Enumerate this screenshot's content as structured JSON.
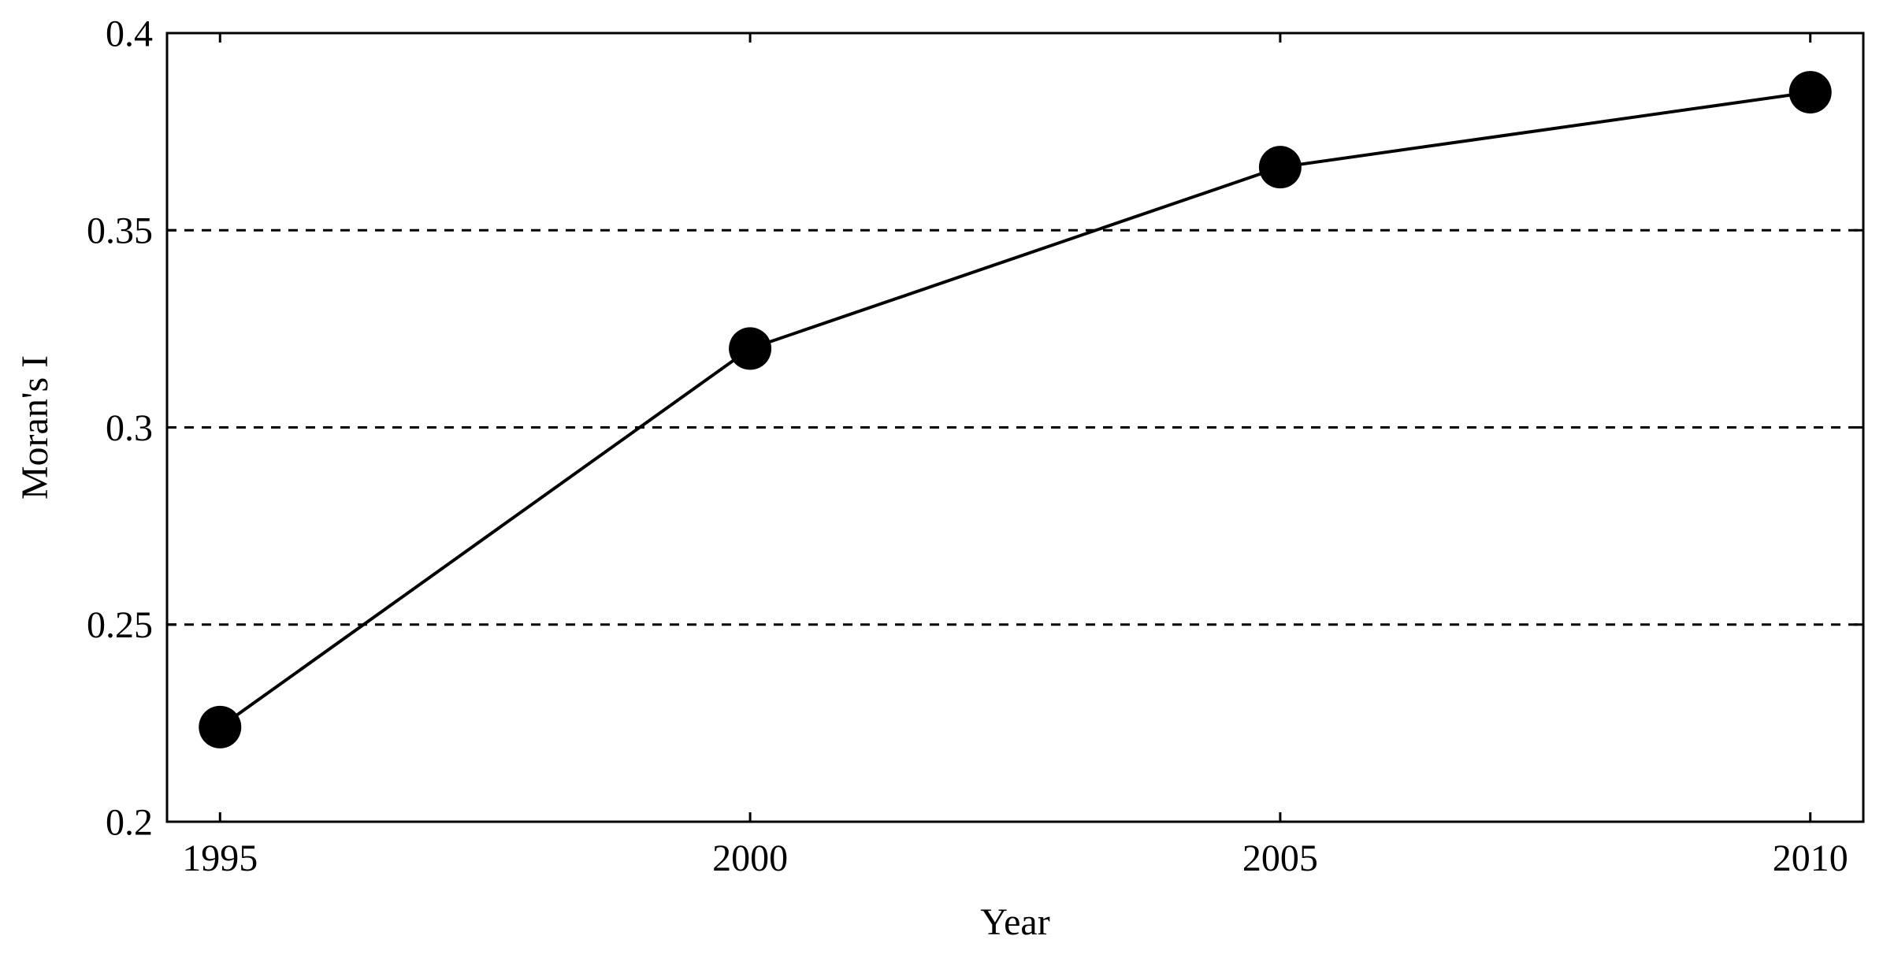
{
  "chart_data": {
    "type": "line",
    "title": "",
    "xlabel": "Year",
    "ylabel": "Moran's I",
    "x": [
      1995,
      2000,
      2005,
      2010
    ],
    "series": [
      {
        "values": [
          0.224,
          0.32,
          0.366,
          0.385
        ]
      }
    ],
    "xlim": [
      1994.5,
      2010.5
    ],
    "ylim": [
      0.2,
      0.4
    ],
    "xticks": [
      1995,
      2000,
      2005,
      2010
    ],
    "xtick_labels": [
      "1995",
      "2000",
      "2005",
      "2010"
    ],
    "yticks": [
      0.2,
      0.25,
      0.3,
      0.35,
      0.4
    ],
    "ytick_labels": [
      "0.2",
      "0.25",
      "0.3",
      "0.35",
      "0.4"
    ],
    "grid": "horizontal dashed",
    "legend": "none",
    "colors": {
      "line": "#000000",
      "marker": "#000000",
      "grid": "#000000",
      "axes": "#000000"
    }
  }
}
